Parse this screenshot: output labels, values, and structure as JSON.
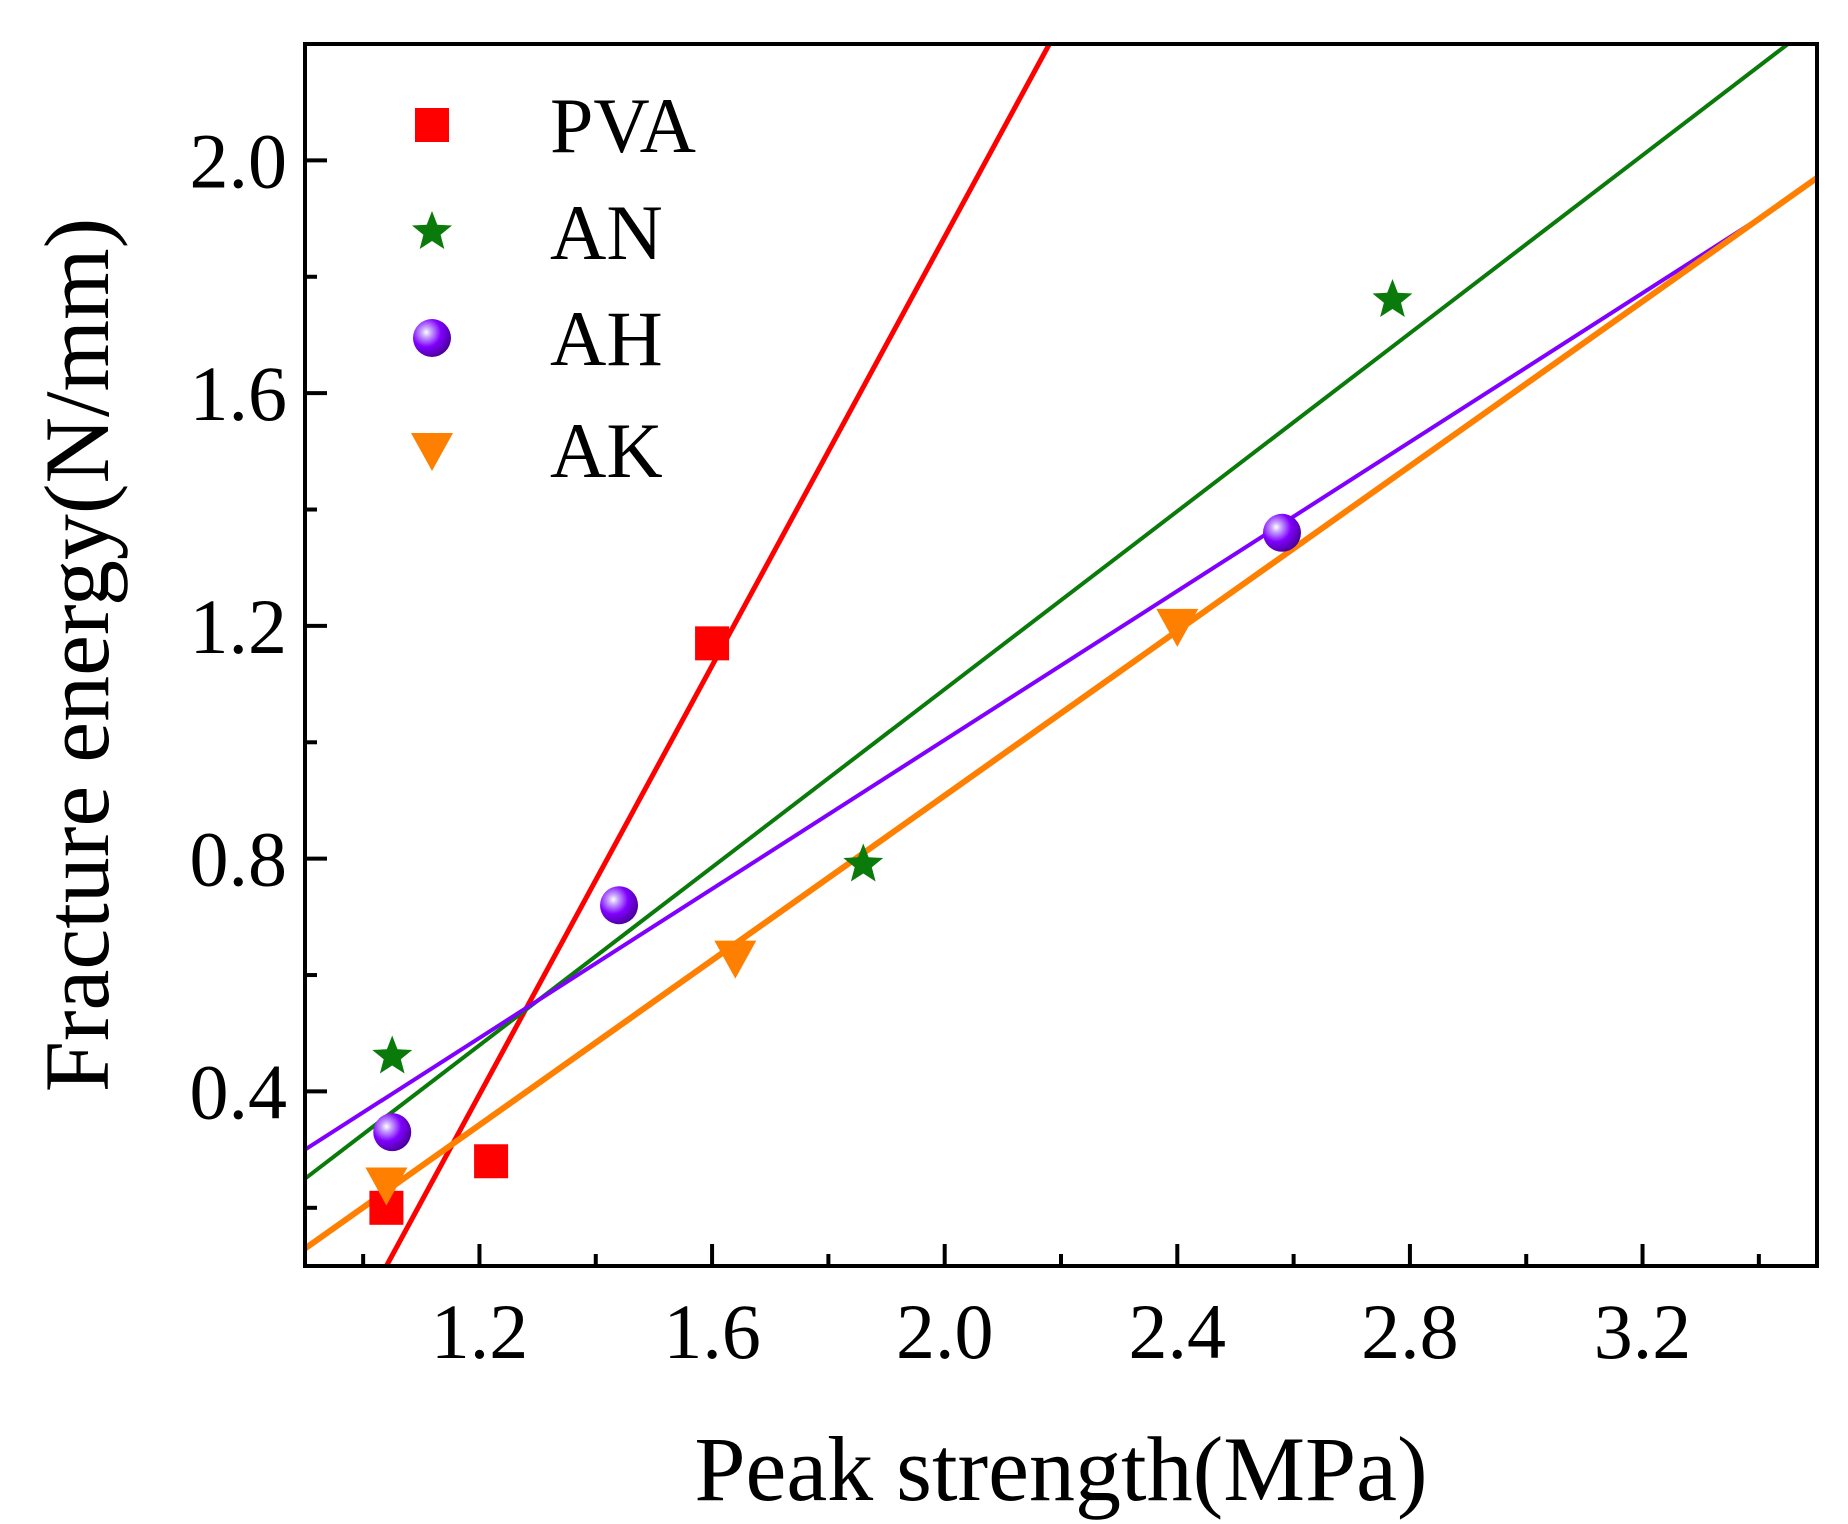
{
  "chart_data": {
    "type": "scatter",
    "xlabel": "Peak strength(MPa)",
    "ylabel": "Fracture energy(N/mm)",
    "xlim": [
      0.9,
      3.5
    ],
    "ylim": [
      0.1,
      2.2
    ],
    "xticks": [
      1.2,
      1.6,
      2.0,
      2.4,
      2.8,
      3.2
    ],
    "xtick_labels": [
      "1.2",
      "1.6",
      "2.0",
      "2.4",
      "2.8",
      "3.2"
    ],
    "yticks": [
      0.4,
      0.8,
      1.2,
      1.6,
      2.0
    ],
    "ytick_labels": [
      "0.4",
      "0.8",
      "1.2",
      "1.6",
      "2.0"
    ],
    "legend_position": "top-left",
    "grid": false,
    "series": [
      {
        "name": "PVA",
        "marker": "square",
        "color": "#ff0000",
        "points": [
          [
            1.04,
            0.2
          ],
          [
            1.22,
            0.28
          ],
          [
            1.6,
            1.17
          ]
        ],
        "fit": [
          [
            1.04,
            0.1
          ],
          [
            2.18,
            2.2
          ]
        ]
      },
      {
        "name": "AN",
        "marker": "star",
        "color": "#0a7a0a",
        "points": [
          [
            1.05,
            0.46
          ],
          [
            1.86,
            0.79
          ],
          [
            2.77,
            1.76
          ]
        ],
        "fit": [
          [
            0.9,
            0.25
          ],
          [
            3.45,
            2.2
          ]
        ]
      },
      {
        "name": "AH",
        "marker": "sphere",
        "color": "#8000ff",
        "points": [
          [
            1.05,
            0.33
          ],
          [
            1.44,
            0.72
          ],
          [
            2.58,
            1.36
          ]
        ],
        "fit": [
          [
            0.9,
            0.3
          ],
          [
            3.4,
            1.9
          ]
        ]
      },
      {
        "name": "AK",
        "marker": "triangle-down",
        "color": "#ff8000",
        "points": [
          [
            1.04,
            0.24
          ],
          [
            1.64,
            0.63
          ],
          [
            2.4,
            1.2
          ]
        ],
        "fit": [
          [
            0.9,
            0.13
          ],
          [
            3.5,
            1.97
          ]
        ]
      }
    ]
  }
}
